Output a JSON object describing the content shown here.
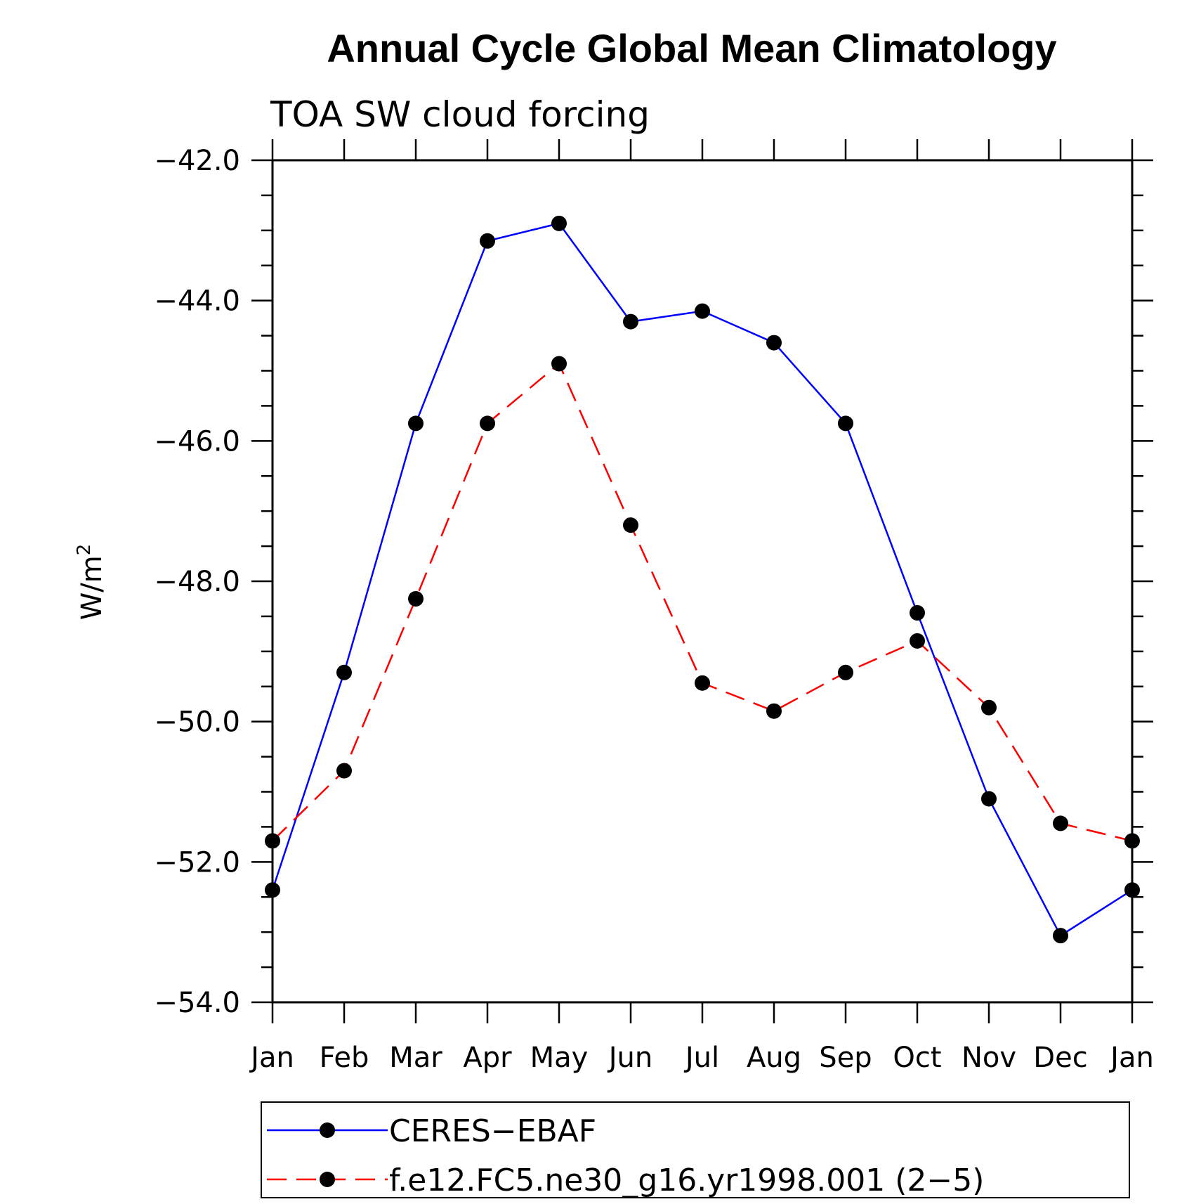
{
  "chart_data": {
    "type": "line",
    "title": "Annual Cycle Global Mean Climatology",
    "subtitle": "TOA SW cloud forcing",
    "ylabel": "W/m",
    "ylabel_superscript": "2",
    "xlabel": "",
    "categories": [
      "Jan",
      "Feb",
      "Mar",
      "Apr",
      "May",
      "Jun",
      "Jul",
      "Aug",
      "Sep",
      "Oct",
      "Nov",
      "Dec",
      "Jan"
    ],
    "ylim": [
      -54.0,
      -42.0
    ],
    "yticks": [
      -42.0,
      -44.0,
      -46.0,
      -48.0,
      -50.0,
      -52.0,
      -54.0
    ],
    "ytick_labels": [
      "−42.0",
      "−44.0",
      "−46.0",
      "−48.0",
      "−50.0",
      "−52.0",
      "−54.0"
    ],
    "grid": false,
    "legend_position": "bottom",
    "series": [
      {
        "name": "CERES−EBAF",
        "color": "#0000ff",
        "dash": "solid",
        "marker": "filled-circle",
        "values": [
          -52.4,
          -49.3,
          -45.75,
          -43.15,
          -42.9,
          -44.3,
          -44.15,
          -44.6,
          -45.75,
          -48.45,
          -51.1,
          -53.05,
          -52.4
        ]
      },
      {
        "name": "f.e12.FC5.ne30_g16.yr1998.001 (2−5)",
        "color": "#ff0000",
        "dash": "dashed",
        "marker": "filled-circle",
        "values": [
          -51.7,
          -50.7,
          -48.25,
          -45.75,
          -44.9,
          -47.2,
          -49.45,
          -49.85,
          -49.3,
          -48.85,
          -49.8,
          -51.45,
          -51.7
        ]
      }
    ]
  }
}
